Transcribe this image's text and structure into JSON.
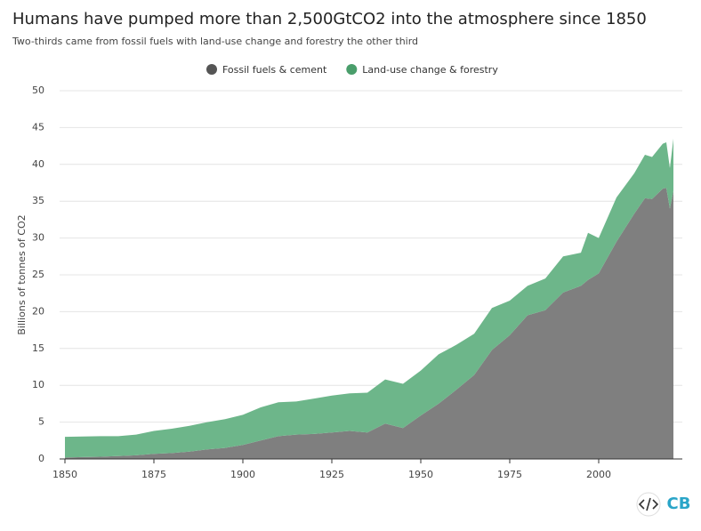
{
  "chart_data": {
    "type": "stacked_area",
    "title": "Humans have pumped more than 2,500GtCO2 into the atmosphere since 1850",
    "subtitle": "Two-thirds came from fossil fuels with land-use change and forestry the other third",
    "y_label": "Billions of tonnes of CO2",
    "brand": "CB",
    "x": [
      1850,
      1855,
      1860,
      1865,
      1870,
      1875,
      1880,
      1885,
      1890,
      1895,
      1900,
      1905,
      1910,
      1915,
      1920,
      1925,
      1930,
      1935,
      1940,
      1945,
      1950,
      1955,
      1960,
      1965,
      1970,
      1975,
      1980,
      1985,
      1990,
      1995,
      1997,
      2000,
      2005,
      2010,
      2013,
      2015,
      2018,
      2019,
      2020,
      2021
    ],
    "series": [
      {
        "name": "Fossil fuels & cement",
        "color": "#7f7f7f",
        "legend_color": "#555555",
        "values": [
          0.2,
          0.25,
          0.3,
          0.4,
          0.5,
          0.7,
          0.8,
          1.0,
          1.3,
          1.5,
          1.9,
          2.5,
          3.1,
          3.3,
          3.4,
          3.6,
          3.8,
          3.6,
          4.8,
          4.2,
          5.9,
          7.5,
          9.4,
          11.4,
          14.8,
          16.8,
          19.5,
          20.2,
          22.6,
          23.5,
          24.3,
          25.2,
          29.5,
          33.3,
          35.4,
          35.3,
          36.7,
          36.8,
          34.0,
          36.4
        ]
      },
      {
        "name": "Land-use change & forestry",
        "color": "#6db68a",
        "legend_color": "#4a9e6b",
        "values": [
          2.8,
          2.8,
          2.8,
          2.7,
          2.8,
          3.1,
          3.3,
          3.5,
          3.7,
          3.9,
          4.1,
          4.5,
          4.6,
          4.5,
          4.8,
          5.0,
          5.1,
          5.4,
          6.0,
          6.0,
          6.1,
          6.7,
          6.1,
          5.6,
          5.7,
          4.7,
          4.0,
          4.3,
          4.9,
          4.5,
          6.4,
          4.8,
          6.0,
          5.5,
          5.9,
          5.7,
          6.1,
          6.2,
          5.5,
          7.1
        ]
      }
    ],
    "xlim": [
      1850,
      2022
    ],
    "xticks": [
      1850,
      1875,
      1900,
      1925,
      1950,
      1975,
      2000
    ],
    "ylim": [
      0,
      50
    ],
    "yticks": [
      0,
      5,
      10,
      15,
      20,
      25,
      30,
      35,
      40,
      45,
      50
    ],
    "grid": true
  }
}
